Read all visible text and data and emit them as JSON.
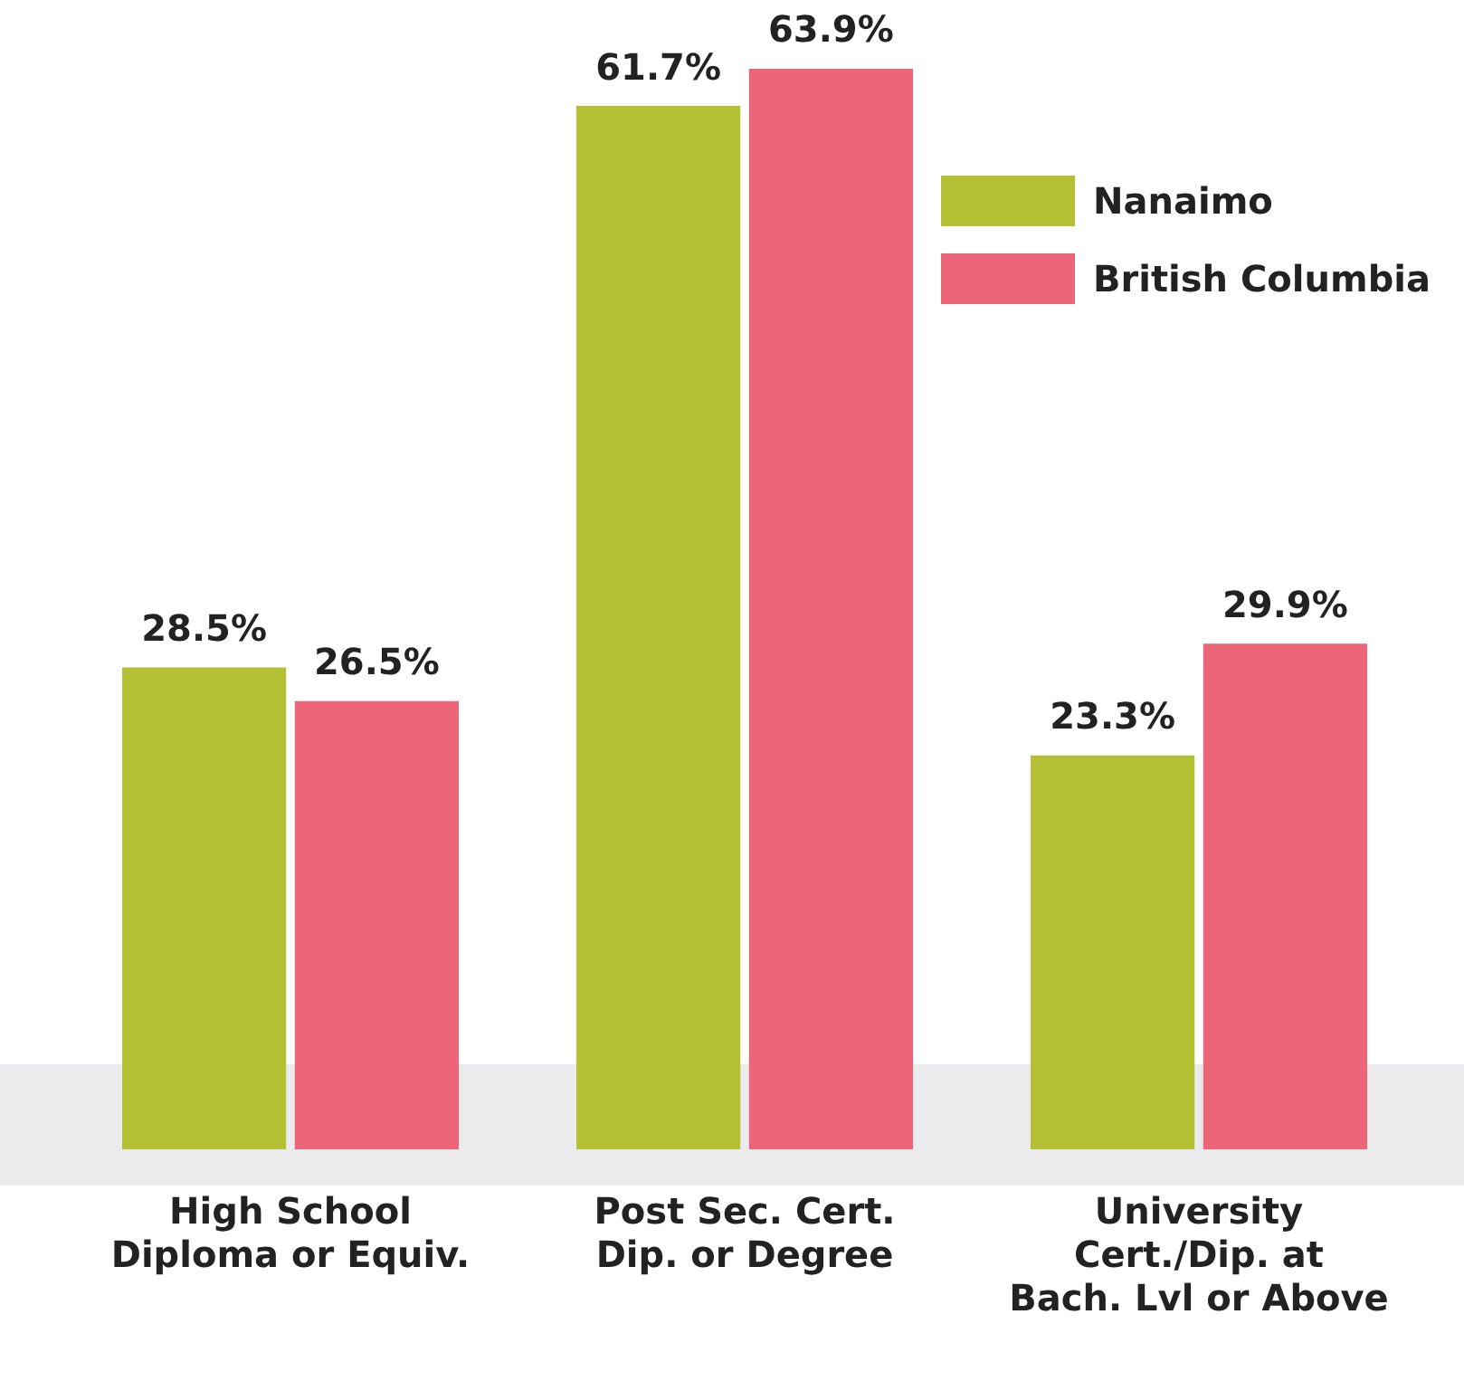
{
  "chart_data": {
    "type": "bar",
    "categories": [
      "High School\nDiploma or Equiv.",
      "Post Sec. Cert.\nDip. or Degree",
      "University\nCert./Dip. at\nBach. Lvl or Above"
    ],
    "series": [
      {
        "name": "Nanaimo",
        "color": "#b5c135",
        "values": [
          28.5,
          61.7,
          23.3
        ],
        "value_labels": [
          "28.5%",
          "61.7%",
          "23.3%"
        ]
      },
      {
        "name": "British Columbia",
        "color": "#ec6579",
        "values": [
          26.5,
          63.9,
          29.9
        ],
        "value_labels": [
          "26.5%",
          "63.9%",
          "29.9%"
        ]
      }
    ],
    "legend": "top right",
    "grid": false
  }
}
